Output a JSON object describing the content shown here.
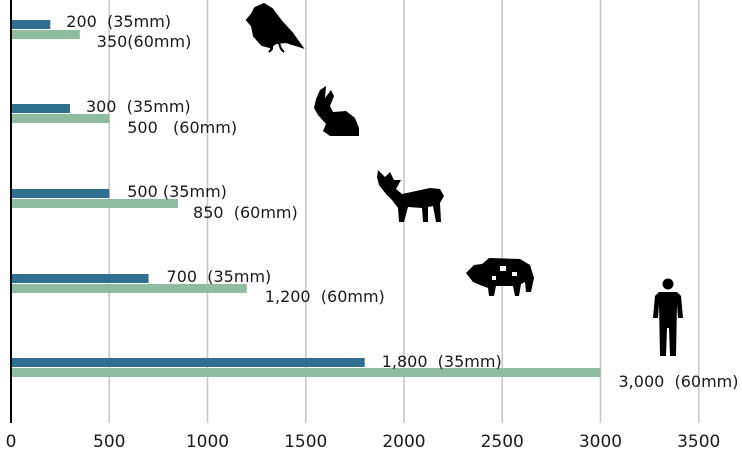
{
  "chart_data": {
    "type": "bar",
    "orientation": "horizontal",
    "categories": [
      "bird",
      "rabbit",
      "deer",
      "cow",
      "person"
    ],
    "series": [
      {
        "name": "35mm",
        "color": "#2f6f8f",
        "values": [
          200,
          300,
          500,
          700,
          1800
        ],
        "labels": [
          "200  (35mm)",
          "300  (35mm)",
          "500 (35mm)",
          "700  (35mm)",
          "1,800  (35mm)"
        ]
      },
      {
        "name": "60mm",
        "color": "#8fbba0",
        "values": [
          350,
          500,
          850,
          1200,
          3000
        ],
        "labels": [
          "350(60mm)",
          "500   (60mm)",
          "850  (60mm)",
          "1,200  (60mm)",
          "3,000  (60mm)"
        ]
      }
    ],
    "icons": [
      "bird-icon",
      "rabbit-icon",
      "deer-icon",
      "cow-icon",
      "person-icon"
    ],
    "xlim": [
      0,
      3700
    ],
    "xticks": [
      0,
      500,
      1000,
      1500,
      2000,
      2500,
      3000,
      3500
    ],
    "xtick_labels": [
      "0",
      "500",
      "1000",
      "1500",
      "2000",
      "2500",
      "3000",
      "3500"
    ],
    "grid": "vertical",
    "gridline_color": "#c8c8c8",
    "title": "",
    "xlabel": "",
    "ylabel": ""
  }
}
